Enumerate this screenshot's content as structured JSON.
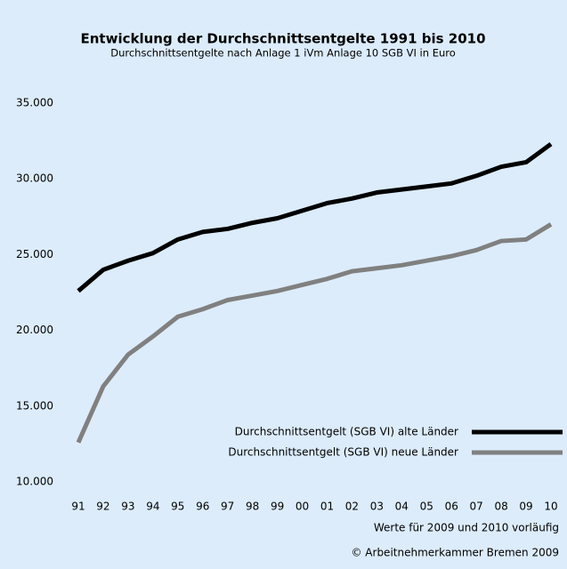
{
  "chart_data": {
    "type": "line",
    "title": "Entwicklung der Durchschnittsentgelte 1991 bis 2010",
    "subtitle": "Durchschnittsentgelte nach Anlage 1 iVm Anlage 10 SGB VI in Euro",
    "categories": [
      "91",
      "92",
      "93",
      "94",
      "95",
      "96",
      "97",
      "98",
      "99",
      "00",
      "01",
      "02",
      "03",
      "04",
      "05",
      "06",
      "07",
      "08",
      "09",
      "10"
    ],
    "series": [
      {
        "name": "Durchschnittsentgelt (SGB VI) alte Länder",
        "color": "#000000",
        "values": [
          22600,
          24000,
          24600,
          25100,
          26000,
          26500,
          26700,
          27100,
          27400,
          27900,
          28400,
          28700,
          29100,
          29300,
          29500,
          29700,
          30200,
          30800,
          31100,
          32300
        ]
      },
      {
        "name": "Durchschnittsentgelt (SGB VI) neue Länder",
        "color": "#808080",
        "values": [
          12600,
          16300,
          18400,
          19600,
          20900,
          21400,
          22000,
          22300,
          22600,
          23000,
          23400,
          23900,
          24100,
          24300,
          24600,
          24900,
          25300,
          25900,
          26000,
          27000
        ]
      }
    ],
    "ylim": [
      10000,
      35000
    ],
    "yticks": [
      {
        "value": 10000,
        "label": "10.000"
      },
      {
        "value": 15000,
        "label": "15.000"
      },
      {
        "value": 20000,
        "label": "20.000"
      },
      {
        "value": 25000,
        "label": "25.000"
      },
      {
        "value": 30000,
        "label": "30.000"
      },
      {
        "value": 35000,
        "label": "35.000"
      }
    ],
    "grid": false,
    "legend": "lower right",
    "annotations": [
      "Werte für 2009 und 2010 vorläufig",
      "© Arbeitnehmerkammer Bremen 2009"
    ]
  }
}
